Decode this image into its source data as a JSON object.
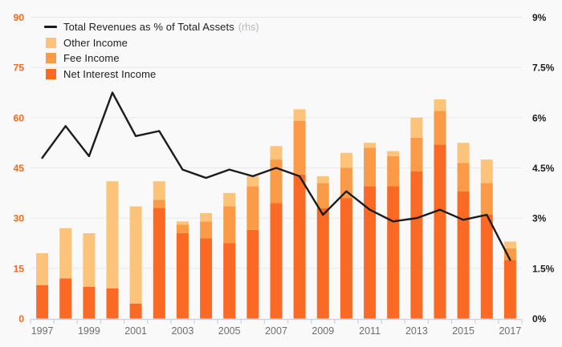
{
  "chart_data": {
    "type": "bar",
    "subtype": "stacked-bars-with-line-overlay",
    "title": "",
    "categories": [
      1997,
      1998,
      1999,
      2000,
      2001,
      2002,
      2003,
      2004,
      2005,
      2006,
      2007,
      2008,
      2009,
      2010,
      2011,
      2012,
      2013,
      2014,
      2015,
      2016,
      2017
    ],
    "series": [
      {
        "name": "Net Interest Income",
        "type": "bar-stack-bottom",
        "color": "#fb6a25",
        "values": [
          10,
          12,
          9.5,
          9,
          4.5,
          33,
          25.5,
          24,
          22.5,
          26.5,
          34.5,
          43,
          33,
          36,
          39.5,
          39.5,
          44,
          52,
          38,
          31,
          17.5
        ]
      },
      {
        "name": "Fee Income",
        "type": "bar-stack-middle",
        "color": "#fb9a47",
        "values": [
          0,
          0,
          0,
          0,
          0,
          2.5,
          2.5,
          5,
          11,
          13,
          13,
          16,
          7.5,
          9,
          11.5,
          9,
          10,
          10,
          8.5,
          9.5,
          3.5
        ]
      },
      {
        "name": "Other Income",
        "type": "bar-stack-top",
        "color": "#fcc37b",
        "values": [
          9.5,
          15,
          16,
          32,
          29,
          5.5,
          1,
          2.5,
          4,
          3,
          4,
          3.5,
          2,
          4.5,
          1.5,
          1.5,
          6,
          3.5,
          6,
          7,
          2
        ]
      }
    ],
    "line_series": {
      "name": "Total Revenues as % of Total Assets",
      "note": "(rhs)",
      "axis": "right",
      "color": "#1b1b1b",
      "values": [
        4.8,
        5.75,
        4.85,
        6.75,
        5.45,
        5.6,
        4.45,
        4.2,
        4.45,
        4.25,
        4.5,
        4.25,
        3.1,
        3.8,
        3.25,
        2.9,
        3.0,
        3.25,
        2.95,
        3.1,
        1.75
      ]
    },
    "left_axis": {
      "tick_values": [
        0,
        15,
        30,
        45,
        60,
        75,
        90
      ],
      "tick_labels": [
        "0",
        "15",
        "30",
        "45",
        "60",
        "75",
        "90"
      ],
      "range": [
        0,
        90
      ],
      "label_color": "#ed6a21"
    },
    "right_axis": {
      "tick_values": [
        0,
        1.5,
        3,
        4.5,
        6,
        7.5,
        9
      ],
      "tick_labels": [
        "0%",
        "1.5%",
        "3%",
        "4.5%",
        "6%",
        "7.5%",
        "9%"
      ],
      "range": [
        0,
        9
      ],
      "label_color": "#1b1b1b"
    },
    "x_axis": {
      "labeled_years": [
        "1997",
        "1999",
        "2001",
        "2003",
        "2005",
        "2007",
        "2009",
        "2011",
        "2013",
        "2015",
        "2017"
      ],
      "label_color": "#6e6e6e"
    },
    "legend_position": "top-left",
    "grid": true,
    "legend": [
      {
        "swatch": "line",
        "label": "Total Revenues as % of Total Assets",
        "note": "(rhs)",
        "color": "#1b1b1b"
      },
      {
        "swatch": "box",
        "label": "Other Income",
        "note": "",
        "color": "#fcc37b"
      },
      {
        "swatch": "box",
        "label": "Fee Income",
        "note": "",
        "color": "#fb9a47"
      },
      {
        "swatch": "box",
        "label": "Net Interest Income",
        "note": "",
        "color": "#fb6a25"
      }
    ]
  },
  "colors": {
    "background": "#f9f9f9",
    "gridline": "#e8e8e8",
    "axis_line": "#c9cfe3",
    "legend_note": "#b4b7bb"
  }
}
